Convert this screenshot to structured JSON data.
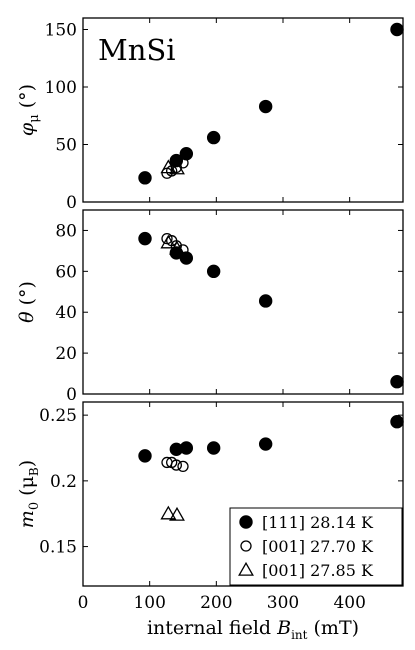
{
  "chart_data": [
    {
      "type": "scatter",
      "panel": "top",
      "annotation": "MnSi",
      "ylabel": "φ_μ (°)",
      "ylabel_parts": {
        "base": "φ",
        "sub": "μ",
        "unit": "(°)"
      },
      "xlim": [
        0,
        480
      ],
      "ylim": [
        0,
        160
      ],
      "yticks": [
        0,
        50,
        100,
        150
      ],
      "grid": false,
      "series": [
        {
          "marker": "filled-circle",
          "x": [
            93,
            140,
            155,
            196,
            274,
            471
          ],
          "y": [
            21,
            36,
            42,
            56,
            83,
            150
          ]
        },
        {
          "marker": "open-circle",
          "x": [
            126,
            133,
            140,
            150
          ],
          "y": [
            25,
            27,
            30,
            34
          ]
        },
        {
          "marker": "open-triangle",
          "x": [
            128,
            141
          ],
          "y": [
            30,
            29
          ]
        }
      ]
    },
    {
      "type": "scatter",
      "panel": "middle",
      "ylabel": "θ (°)",
      "ylabel_parts": {
        "base": "θ",
        "unit": "(°)"
      },
      "xlim": [
        0,
        480
      ],
      "ylim": [
        0,
        90
      ],
      "yticks": [
        0,
        20,
        40,
        60,
        80
      ],
      "grid": false,
      "series": [
        {
          "marker": "filled-circle",
          "x": [
            93,
            140,
            155,
            196,
            274,
            471
          ],
          "y": [
            76,
            69,
            66.5,
            60,
            45.5,
            6
          ]
        },
        {
          "marker": "open-circle",
          "x": [
            126,
            133,
            140,
            150
          ],
          "y": [
            76,
            75,
            72.5,
            70.5
          ]
        },
        {
          "marker": "open-triangle",
          "x": [
            128,
            141
          ],
          "y": [
            74,
            71
          ]
        }
      ]
    },
    {
      "type": "scatter",
      "panel": "bottom",
      "ylabel": "m0 (μB)",
      "ylabel_parts": {
        "base": "m",
        "sub": "0",
        "unit_pre": "(μ",
        "unit_sub": "B",
        "unit_post": ")"
      },
      "xlabel": "internal field B_int (mT)",
      "xlabel_parts": {
        "pre": "internal field ",
        "var": "B",
        "sub": "int",
        "post": " (mT)"
      },
      "xlim": [
        0,
        480
      ],
      "ylim": [
        0.12,
        0.26
      ],
      "xticks": [
        0,
        100,
        200,
        300,
        400
      ],
      "yticks": [
        0.15,
        0.2,
        0.25
      ],
      "ytick_labels": [
        "0.15",
        "0.2",
        "0.25"
      ],
      "grid": false,
      "legend_position": "bottom-right",
      "series": [
        {
          "name": "[111] 28.14 K",
          "marker": "filled-circle",
          "x": [
            93,
            140,
            155,
            196,
            274,
            471
          ],
          "y": [
            0.219,
            0.224,
            0.225,
            0.225,
            0.228,
            0.245
          ]
        },
        {
          "name": "[001] 27.70 K",
          "marker": "open-circle",
          "x": [
            126,
            133,
            140,
            150
          ],
          "y": [
            0.214,
            0.214,
            0.212,
            0.211
          ]
        },
        {
          "name": "[001] 27.85 K",
          "marker": "open-triangle",
          "x": [
            128,
            141
          ],
          "y": [
            0.175,
            0.174
          ]
        }
      ]
    }
  ]
}
